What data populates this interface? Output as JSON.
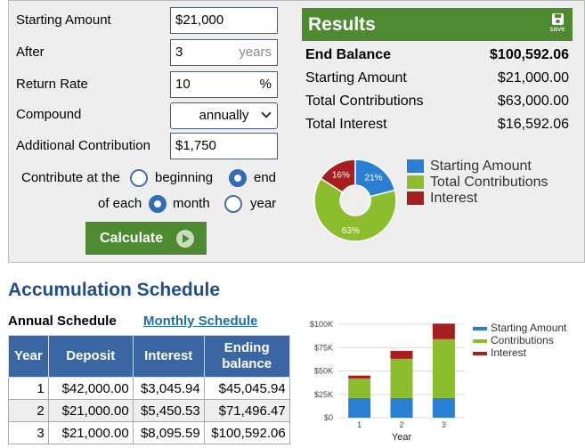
{
  "form": {
    "starting_amount": {
      "label": "Starting Amount",
      "value": "$21,000"
    },
    "after": {
      "label": "After",
      "value": "3",
      "unit": "years"
    },
    "return_rate": {
      "label": "Return Rate",
      "value": "10",
      "unit": "%"
    },
    "compound": {
      "label": "Compound",
      "selected": "annually"
    },
    "additional_contribution": {
      "label": "Additional Contribution",
      "value": "$1,750"
    },
    "contribute_at": {
      "label": "Contribute at the",
      "options": [
        "beginning",
        "end"
      ],
      "selected": "end"
    },
    "of_each": {
      "label": "of each",
      "options": [
        "month",
        "year"
      ],
      "selected": "month"
    },
    "calculate_label": "Calculate"
  },
  "results": {
    "title": "Results",
    "save_label": "save",
    "rows": [
      {
        "label": "End Balance",
        "value": "$100,592.06"
      },
      {
        "label": "Starting Amount",
        "value": "$21,000.00"
      },
      {
        "label": "Total Contributions",
        "value": "$63,000.00"
      },
      {
        "label": "Total Interest",
        "value": "$16,592.06"
      }
    ],
    "legend": [
      "Starting Amount",
      "Total Contributions",
      "Interest"
    ]
  },
  "donut": {
    "slices": [
      {
        "name": "Starting Amount",
        "percent": 21,
        "label": "21%",
        "color": "#2a7fd4"
      },
      {
        "name": "Total Contributions",
        "percent": 63,
        "label": "63%",
        "color": "#8cbd2c"
      },
      {
        "name": "Interest",
        "percent": 16,
        "label": "16%",
        "color": "#a61e1e"
      }
    ]
  },
  "schedule": {
    "heading": "Accumulation Schedule",
    "tabs": [
      "Annual Schedule",
      "Monthly Schedule"
    ],
    "columns": [
      "Year",
      "Deposit",
      "Interest",
      "Ending balance"
    ],
    "rows": [
      [
        "1",
        "$42,000.00",
        "$3,045.94",
        "$45,045.94"
      ],
      [
        "2",
        "$21,000.00",
        "$5,450.53",
        "$71,496.47"
      ],
      [
        "3",
        "$21,000.00",
        "$8,095.59",
        "$100,592.06"
      ]
    ]
  },
  "chart_data": {
    "type": "bar",
    "stacked": true,
    "categories": [
      "1",
      "2",
      "3"
    ],
    "series": [
      {
        "name": "Starting Amount",
        "color": "#2a7fd4",
        "values": [
          21000,
          21000,
          21000
        ]
      },
      {
        "name": "Contributions",
        "color": "#8cbd2c",
        "values": [
          21000,
          42000,
          63000
        ]
      },
      {
        "name": "Interest",
        "color": "#a61e1e",
        "values": [
          3045.94,
          8496.47,
          16592.06
        ]
      }
    ],
    "yticks": [
      "$0",
      "$25K",
      "$50K",
      "$75K",
      "$100K"
    ],
    "ylim": [
      0,
      100000
    ],
    "xlabel": "Year",
    "ylabel": "",
    "legend_position": "top-right"
  },
  "colors": {
    "accent_green": "#4e8a31",
    "header_blue": "#3a66a4",
    "heading_blue": "#1f4e8a"
  }
}
